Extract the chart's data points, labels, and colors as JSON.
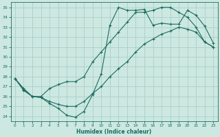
{
  "xlabel": "Humidex (Indice chaleur)",
  "bg_color": "#cce8e0",
  "grid_color": "#aad0c8",
  "line_color": "#1a6b60",
  "xlim": [
    -0.5,
    23.5
  ],
  "ylim": [
    23.5,
    35.5
  ],
  "xticks": [
    0,
    1,
    2,
    3,
    4,
    5,
    6,
    7,
    8,
    9,
    10,
    11,
    12,
    13,
    14,
    15,
    16,
    17,
    18,
    19,
    20,
    21,
    22,
    23
  ],
  "yticks": [
    24,
    25,
    26,
    27,
    28,
    29,
    30,
    31,
    32,
    33,
    34,
    35
  ],
  "line1": {
    "x": [
      0,
      1,
      2,
      3,
      4,
      5,
      6,
      7,
      8,
      9,
      10,
      11,
      12,
      13,
      14,
      15,
      16,
      17,
      18,
      19,
      20,
      21,
      22,
      23
    ],
    "y": [
      27.8,
      26.6,
      26.0,
      25.9,
      25.3,
      24.8,
      24.1,
      23.9,
      24.5,
      26.2,
      28.3,
      33.2,
      35.0,
      34.7,
      34.7,
      34.8,
      33.2,
      33.4,
      33.3,
      33.3,
      34.7,
      34.2,
      33.1,
      31.4
    ]
  },
  "line2": {
    "x": [
      0,
      1,
      2,
      3,
      4,
      5,
      6,
      7,
      8,
      9,
      10,
      11,
      12,
      13,
      14,
      15,
      16,
      17,
      18,
      19,
      20,
      21,
      22,
      23
    ],
    "y": [
      27.8,
      26.8,
      26.0,
      26.0,
      26.8,
      27.2,
      27.5,
      27.5,
      28.0,
      29.5,
      30.5,
      31.5,
      32.5,
      33.5,
      34.5,
      34.5,
      34.7,
      35.0,
      35.0,
      34.5,
      34.0,
      33.0,
      31.5,
      31.0
    ]
  },
  "line3": {
    "x": [
      0,
      1,
      2,
      3,
      4,
      5,
      6,
      7,
      8,
      9,
      10,
      11,
      12,
      13,
      14,
      15,
      16,
      17,
      18,
      19,
      20,
      21,
      22,
      23
    ],
    "y": [
      27.8,
      26.7,
      26.0,
      25.9,
      25.5,
      25.2,
      25.0,
      25.0,
      25.5,
      26.3,
      27.0,
      28.0,
      28.8,
      29.5,
      30.5,
      31.3,
      31.8,
      32.3,
      32.6,
      33.0,
      32.8,
      32.5,
      31.5,
      31.0
    ]
  }
}
